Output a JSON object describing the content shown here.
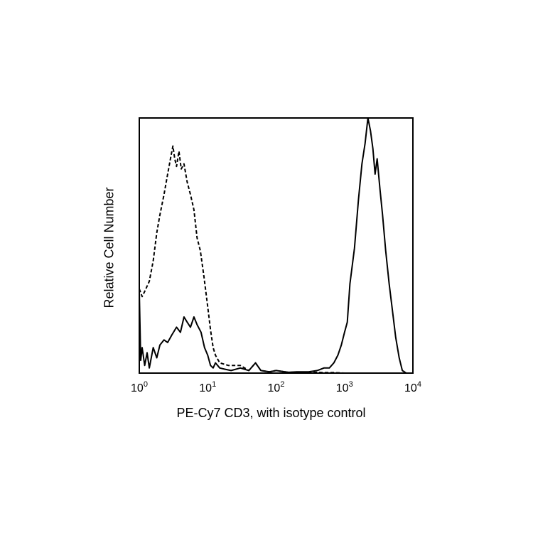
{
  "chart_data": {
    "type": "line",
    "x_scale": "log",
    "xlim": [
      1,
      10000
    ],
    "ylim": [
      0,
      100
    ],
    "grid": false,
    "legend": "none",
    "xlabel": "PE-Cy7 CD3, with isotype control",
    "ylabel": "Relative Cell Number",
    "x_ticks": [
      {
        "value": 1,
        "base": "10",
        "exp": "0"
      },
      {
        "value": 10,
        "base": "10",
        "exp": "1"
      },
      {
        "value": 100,
        "base": "10",
        "exp": "2"
      },
      {
        "value": 1000,
        "base": "10",
        "exp": "3"
      },
      {
        "value": 10000,
        "base": "10",
        "exp": "4"
      }
    ],
    "series": [
      {
        "style": "dashed",
        "color": "#000000",
        "x": [
          1.0,
          1.1,
          1.2,
          1.4,
          1.6,
          1.8,
          2.0,
          2.3,
          2.6,
          2.9,
          3.1,
          3.3,
          3.5,
          3.8,
          4.1,
          4.5,
          5.0,
          5.6,
          6.3,
          7.0,
          7.8,
          8.8,
          10,
          11,
          12,
          13,
          15,
          20,
          30,
          40,
          50,
          60,
          80,
          100,
          150,
          200,
          300,
          400,
          500,
          700,
          1000,
          10000
        ],
        "y": [
          33,
          30,
          32,
          36,
          44,
          55,
          62,
          70,
          78,
          85,
          89,
          84,
          81,
          87,
          80,
          82,
          75,
          70,
          64,
          53,
          48,
          38,
          26,
          17,
          10,
          7,
          4,
          3,
          3,
          1,
          4,
          1,
          0.5,
          1,
          0.3,
          0.3,
          0.2,
          0.3,
          0.2,
          0.2,
          0,
          0
        ]
      },
      {
        "style": "solid",
        "color": "#000000",
        "x": [
          1.0,
          1.05,
          1.1,
          1.2,
          1.3,
          1.4,
          1.6,
          1.8,
          2.0,
          2.3,
          2.6,
          3.0,
          3.5,
          4.0,
          4.5,
          5.0,
          5.6,
          6.3,
          7.0,
          8.0,
          9.0,
          10,
          11,
          12,
          13,
          15,
          18,
          22,
          30,
          40,
          50,
          60,
          80,
          100,
          150,
          200,
          300,
          400,
          500,
          600,
          700,
          800,
          900,
          1000,
          1100,
          1200,
          1400,
          1600,
          1800,
          2000,
          2200,
          2400,
          2600,
          2800,
          3000,
          3300,
          3600,
          4000,
          4500,
          5000,
          5600,
          6300,
          7000,
          8000,
          10000
        ],
        "y": [
          32,
          5,
          10,
          3,
          8,
          2,
          10,
          6,
          11,
          13,
          12,
          15,
          18,
          16,
          22,
          20,
          18,
          22,
          19,
          16,
          10,
          7,
          3,
          2,
          4,
          2,
          1.5,
          1,
          2,
          1,
          4,
          1,
          0.5,
          1,
          0.3,
          0.5,
          0.5,
          1,
          2,
          2,
          4,
          7,
          11,
          16,
          20,
          35,
          49,
          68,
          82,
          90,
          100,
          95,
          88,
          78,
          84,
          72,
          62,
          48,
          35,
          25,
          14,
          6,
          1,
          0,
          0
        ]
      }
    ]
  }
}
